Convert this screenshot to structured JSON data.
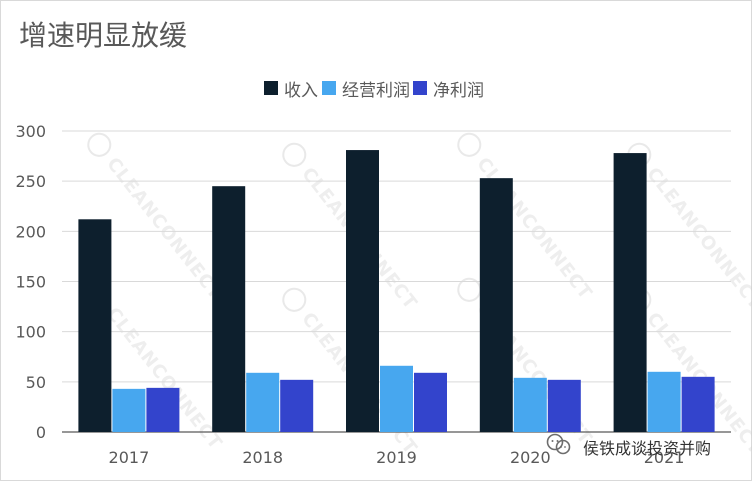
{
  "chart_data": {
    "type": "bar",
    "title": "增速明显放缓",
    "categories": [
      "2017",
      "2018",
      "2019",
      "2020",
      "2021"
    ],
    "series": [
      {
        "name": "收入",
        "color": "#0d1f2d",
        "values": [
          212,
          245,
          281,
          253,
          278
        ]
      },
      {
        "name": "经营利润",
        "color": "#47a7ef",
        "values": [
          43,
          59,
          66,
          54,
          60
        ]
      },
      {
        "name": "净利润",
        "color": "#3344cc",
        "values": [
          44,
          52,
          59,
          52,
          55
        ]
      }
    ],
    "yticks": [
      0,
      50,
      100,
      150,
      200,
      250,
      300
    ],
    "ylim": [
      0,
      300
    ],
    "grid": true,
    "legend_position": "top-center"
  },
  "watermark": {
    "text": "CLEANCONNECT"
  },
  "wechat_badge": {
    "icon": "wechat-icon",
    "label": "侯铁成谈投资并购"
  }
}
